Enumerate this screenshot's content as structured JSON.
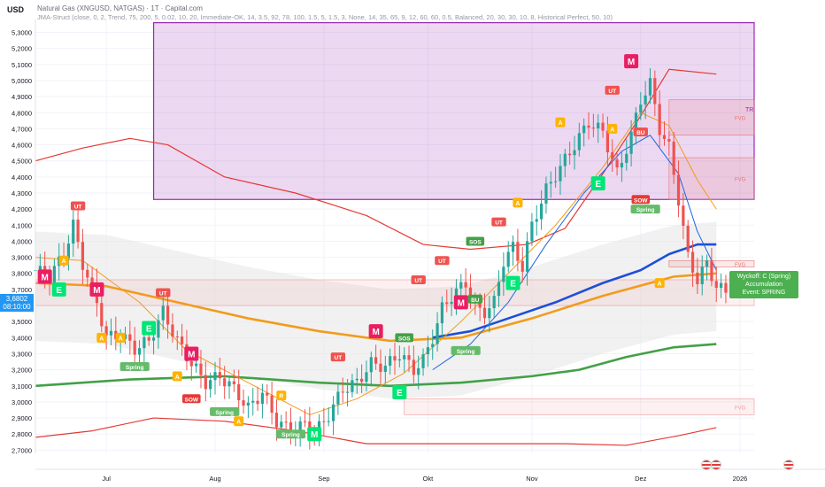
{
  "header": {
    "currency": "USD",
    "title": "Natural Gas (XNGUSD, NATGAS) · 1T · Capital.com",
    "indicator": "JMA-Struct (close, 0, 2, Trend, 75, 200, 5, 0.02, 10, 20, Immediate-OK, 14, 3.5, 92, 78, 100, 1.5, 5, 1.5, 3, None, 14, 35, 65, 9, 12, 60, 60, 0.5, Balanced, 20, 30, 30, 10, 8, Historical Perfect, 50, 10)"
  },
  "price_tag": {
    "price": "3,6802",
    "countdown": "08:10:00",
    "color": "#2196f3"
  },
  "wyckoff_box": {
    "line1": "Wyckoff: C (Spring)",
    "line2": "Accumulation",
    "line3": "Event: SPRING",
    "color": "#4caf50"
  },
  "zone_label": "TR",
  "icons": [
    "flag-us-icon",
    "flag-us-icon",
    "flag-us-icon"
  ],
  "chart_data": {
    "type": "candlestick",
    "ylim": [
      2.68,
      5.38
    ],
    "y_ticks": [
      "5,3000",
      "5,2000",
      "5,1000",
      "5,0000",
      "4,9000",
      "4,8000",
      "4,7000",
      "4,6000",
      "4,5000",
      "4,4000",
      "4,3000",
      "4,2000",
      "4,1000",
      "4,0000",
      "3,9000",
      "3,8000",
      "3,7000",
      "3,6000",
      "3,5000",
      "3,4000",
      "3,3000",
      "3,2000",
      "3,1000",
      "3,0000",
      "2,9000",
      "2,8000",
      "2,7000"
    ],
    "y_tick_values": [
      5.3,
      5.2,
      5.1,
      5.0,
      4.9,
      4.8,
      4.7,
      4.6,
      4.5,
      4.4,
      4.3,
      4.2,
      4.1,
      4.0,
      3.9,
      3.8,
      3.7,
      3.6,
      3.5,
      3.4,
      3.3,
      3.2,
      3.1,
      3.0,
      2.9,
      2.8,
      2.7
    ],
    "x_range": [
      0,
      152
    ],
    "x_ticks": [
      {
        "label": "Jul",
        "i": 15
      },
      {
        "label": "Aug",
        "i": 38
      },
      {
        "label": "Sep",
        "i": 61
      },
      {
        "label": "Okt",
        "i": 83
      },
      {
        "label": "Nov",
        "i": 105
      },
      {
        "label": "Dez",
        "i": 128
      },
      {
        "label": "2026",
        "i": 149
      }
    ],
    "close_anchors": [
      [
        0,
        3.82
      ],
      [
        3,
        3.78
      ],
      [
        6,
        3.92
      ],
      [
        8,
        4.1
      ],
      [
        10,
        3.86
      ],
      [
        13,
        3.62
      ],
      [
        15,
        3.4
      ],
      [
        18,
        3.42
      ],
      [
        21,
        3.33
      ],
      [
        24,
        3.38
      ],
      [
        27,
        3.56
      ],
      [
        30,
        3.38
      ],
      [
        33,
        3.24
      ],
      [
        36,
        3.12
      ],
      [
        39,
        3.16
      ],
      [
        42,
        3.08
      ],
      [
        45,
        2.96
      ],
      [
        48,
        3.06
      ],
      [
        51,
        2.88
      ],
      [
        54,
        2.82
      ],
      [
        57,
        2.86
      ],
      [
        59,
        2.8
      ],
      [
        62,
        2.92
      ],
      [
        65,
        3.08
      ],
      [
        68,
        3.12
      ],
      [
        71,
        3.24
      ],
      [
        74,
        3.22
      ],
      [
        77,
        3.3
      ],
      [
        80,
        3.2
      ],
      [
        82,
        3.26
      ],
      [
        84,
        3.4
      ],
      [
        86,
        3.58
      ],
      [
        88,
        3.66
      ],
      [
        91,
        3.74
      ],
      [
        93,
        3.58
      ],
      [
        95,
        3.56
      ],
      [
        97,
        3.62
      ],
      [
        99,
        3.88
      ],
      [
        101,
        3.96
      ],
      [
        103,
        3.84
      ],
      [
        105,
        4.1
      ],
      [
        108,
        4.32
      ],
      [
        111,
        4.46
      ],
      [
        114,
        4.6
      ],
      [
        117,
        4.74
      ],
      [
        120,
        4.68
      ],
      [
        123,
        4.42
      ],
      [
        126,
        4.66
      ],
      [
        128,
        4.88
      ],
      [
        130,
        4.98
      ],
      [
        132,
        4.7
      ],
      [
        134,
        4.58
      ],
      [
        136,
        4.26
      ],
      [
        138,
        3.9
      ],
      [
        140,
        3.76
      ],
      [
        142,
        3.86
      ],
      [
        144,
        3.72
      ],
      [
        146,
        3.68
      ]
    ],
    "overlay_lines": {
      "upper_red": [
        [
          0,
          4.5
        ],
        [
          10,
          4.58
        ],
        [
          20,
          4.64
        ],
        [
          28,
          4.6
        ],
        [
          40,
          4.4
        ],
        [
          55,
          4.3
        ],
        [
          70,
          4.16
        ],
        [
          82,
          3.98
        ],
        [
          92,
          3.95
        ],
        [
          104,
          3.98
        ],
        [
          112,
          4.08
        ],
        [
          120,
          4.42
        ],
        [
          128,
          4.78
        ],
        [
          134,
          5.07
        ],
        [
          144,
          5.04
        ]
      ],
      "lower_red": [
        [
          0,
          2.78
        ],
        [
          12,
          2.82
        ],
        [
          25,
          2.9
        ],
        [
          40,
          2.88
        ],
        [
          55,
          2.82
        ],
        [
          70,
          2.74
        ],
        [
          85,
          2.74
        ],
        [
          100,
          2.74
        ],
        [
          112,
          2.74
        ],
        [
          125,
          2.73
        ],
        [
          136,
          2.79
        ],
        [
          144,
          2.84
        ]
      ],
      "green_thick": [
        [
          0,
          3.1
        ],
        [
          20,
          3.14
        ],
        [
          40,
          3.16
        ],
        [
          60,
          3.12
        ],
        [
          75,
          3.1
        ],
        [
          90,
          3.12
        ],
        [
          105,
          3.16
        ],
        [
          115,
          3.2
        ],
        [
          125,
          3.28
        ],
        [
          135,
          3.34
        ],
        [
          144,
          3.36
        ]
      ],
      "orange_thick": [
        [
          0,
          3.74
        ],
        [
          15,
          3.72
        ],
        [
          30,
          3.62
        ],
        [
          45,
          3.52
        ],
        [
          60,
          3.44
        ],
        [
          75,
          3.38
        ],
        [
          90,
          3.4
        ],
        [
          105,
          3.52
        ],
        [
          120,
          3.66
        ],
        [
          135,
          3.78
        ],
        [
          144,
          3.8
        ]
      ],
      "blue_thick": [
        [
          84,
          3.4
        ],
        [
          92,
          3.44
        ],
        [
          100,
          3.52
        ],
        [
          110,
          3.62
        ],
        [
          120,
          3.74
        ],
        [
          128,
          3.82
        ],
        [
          134,
          3.92
        ],
        [
          140,
          3.98
        ],
        [
          144,
          3.98
        ]
      ],
      "orange_mid": [
        [
          0,
          3.9
        ],
        [
          10,
          3.88
        ],
        [
          22,
          3.62
        ],
        [
          32,
          3.32
        ],
        [
          45,
          3.12
        ],
        [
          58,
          2.92
        ],
        [
          68,
          3.02
        ],
        [
          78,
          3.18
        ],
        [
          90,
          3.5
        ],
        [
          100,
          3.8
        ],
        [
          110,
          4.1
        ],
        [
          120,
          4.46
        ],
        [
          128,
          4.8
        ],
        [
          134,
          4.72
        ],
        [
          140,
          4.38
        ],
        [
          144,
          4.2
        ]
      ],
      "blue_mid": [
        [
          84,
          3.2
        ],
        [
          92,
          3.36
        ],
        [
          100,
          3.62
        ],
        [
          108,
          3.98
        ],
        [
          116,
          4.3
        ],
        [
          124,
          4.56
        ],
        [
          130,
          4.66
        ],
        [
          136,
          4.42
        ],
        [
          140,
          4.06
        ],
        [
          144,
          3.82
        ]
      ]
    },
    "zones": [
      {
        "label": "TR",
        "x0": 25,
        "x1": 152,
        "y0": 4.26,
        "y1": 5.36,
        "color": "#9c27b0"
      },
      {
        "label": "FVG",
        "x0": 134,
        "x1": 152,
        "y0": 4.66,
        "y1": 4.88,
        "color": "#e57373"
      },
      {
        "label": "FVG",
        "x0": 134,
        "x1": 152,
        "y0": 4.26,
        "y1": 4.52,
        "color": "#e57373"
      },
      {
        "label": "FVG",
        "x0": 0,
        "x1": 152,
        "y0": 3.6,
        "y1": 3.76,
        "color": "#ef9a9a"
      },
      {
        "label": "FVG",
        "x0": 78,
        "x1": 152,
        "y0": 2.92,
        "y1": 3.02,
        "color": "#ef9a9a"
      },
      {
        "label": "FVG",
        "x0": 134,
        "x1": 152,
        "y0": 3.84,
        "y1": 3.88,
        "color": "#e57373"
      }
    ],
    "markers": [
      {
        "text": "M",
        "i": 2,
        "y": 3.78,
        "color": "#e91e63"
      },
      {
        "text": "E",
        "i": 5,
        "y": 3.7,
        "color": "#00e676"
      },
      {
        "text": "UT",
        "i": 9,
        "y": 4.22,
        "color": "#ef5350"
      },
      {
        "text": "A",
        "i": 6,
        "y": 3.88,
        "color": "#ffb300"
      },
      {
        "text": "M",
        "i": 13,
        "y": 3.7,
        "color": "#e91e63"
      },
      {
        "text": "A",
        "i": 14,
        "y": 3.4,
        "color": "#ffb300"
      },
      {
        "text": "A",
        "i": 18,
        "y": 3.4,
        "color": "#ffb300"
      },
      {
        "text": "E",
        "i": 24,
        "y": 3.46,
        "color": "#00e676"
      },
      {
        "text": "Spring",
        "i": 21,
        "y": 3.22,
        "color": "#66bb6a"
      },
      {
        "text": "UT",
        "i": 27,
        "y": 3.68,
        "color": "#ef5350"
      },
      {
        "text": "M",
        "i": 33,
        "y": 3.3,
        "color": "#e91e63"
      },
      {
        "text": "A",
        "i": 30,
        "y": 3.16,
        "color": "#ffb300"
      },
      {
        "text": "SOW",
        "i": 33,
        "y": 3.02,
        "color": "#e53935"
      },
      {
        "text": "Spring",
        "i": 40,
        "y": 2.94,
        "color": "#66bb6a"
      },
      {
        "text": "A",
        "i": 43,
        "y": 2.88,
        "color": "#ffb300"
      },
      {
        "text": "R",
        "i": 52,
        "y": 3.04,
        "color": "#ffb300"
      },
      {
        "text": "Spring",
        "i": 54,
        "y": 2.8,
        "color": "#66bb6a"
      },
      {
        "text": "M",
        "i": 59,
        "y": 2.8,
        "color": "#00e676"
      },
      {
        "text": "UT",
        "i": 64,
        "y": 3.28,
        "color": "#ef5350"
      },
      {
        "text": "M",
        "i": 72,
        "y": 3.44,
        "color": "#e91e63"
      },
      {
        "text": "SOS",
        "i": 78,
        "y": 3.4,
        "color": "#43a047"
      },
      {
        "text": "E",
        "i": 77,
        "y": 3.06,
        "color": "#00e676"
      },
      {
        "text": "UT",
        "i": 81,
        "y": 3.76,
        "color": "#ef5350"
      },
      {
        "text": "UT",
        "i": 86,
        "y": 3.88,
        "color": "#ef5350"
      },
      {
        "text": "M",
        "i": 90,
        "y": 3.62,
        "color": "#e91e63"
      },
      {
        "text": "BU",
        "i": 93,
        "y": 3.64,
        "color": "#43a047"
      },
      {
        "text": "Spring",
        "i": 91,
        "y": 3.32,
        "color": "#66bb6a"
      },
      {
        "text": "SOS",
        "i": 93,
        "y": 4.0,
        "color": "#43a047"
      },
      {
        "text": "UT",
        "i": 98,
        "y": 4.12,
        "color": "#ef5350"
      },
      {
        "text": "E",
        "i": 101,
        "y": 3.74,
        "color": "#00e676"
      },
      {
        "text": "A",
        "i": 102,
        "y": 4.24,
        "color": "#ffb300"
      },
      {
        "text": "A",
        "i": 111,
        "y": 4.74,
        "color": "#ffb300"
      },
      {
        "text": "E",
        "i": 119,
        "y": 4.36,
        "color": "#00e676"
      },
      {
        "text": "A",
        "i": 122,
        "y": 4.7,
        "color": "#ffb300"
      },
      {
        "text": "UT",
        "i": 122,
        "y": 4.94,
        "color": "#ef5350"
      },
      {
        "text": "M",
        "i": 126,
        "y": 5.12,
        "color": "#e91e63"
      },
      {
        "text": "BU",
        "i": 128,
        "y": 4.68,
        "color": "#ef5350"
      },
      {
        "text": "SOW",
        "i": 128,
        "y": 4.26,
        "color": "#e53935"
      },
      {
        "text": "Spring",
        "i": 129,
        "y": 4.2,
        "color": "#66bb6a"
      },
      {
        "text": "A",
        "i": 132,
        "y": 3.74,
        "color": "#ffb300"
      }
    ]
  }
}
